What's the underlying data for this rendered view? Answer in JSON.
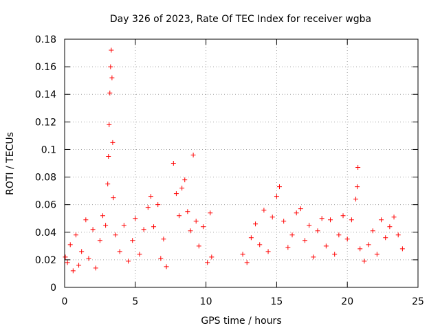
{
  "chart_data": {
    "type": "scatter",
    "title": "Day 326 of 2023, Rate Of TEC Index for receiver wgba",
    "xlabel": "GPS time / hours",
    "ylabel": "ROTI / TECUs",
    "xlim": [
      0,
      25
    ],
    "ylim": [
      0,
      0.18
    ],
    "xticks": [
      0,
      5,
      10,
      15,
      20,
      25
    ],
    "xtick_labels": [
      "0",
      "5",
      "10",
      "15",
      "20",
      "25"
    ],
    "yticks": [
      0,
      0.02,
      0.04,
      0.06,
      0.08,
      0.1,
      0.12,
      0.14,
      0.16,
      0.18
    ],
    "ytick_labels": [
      "0",
      "0.02",
      "0.04",
      "0.06",
      "0.08",
      "0.1",
      "0.12",
      "0.14",
      "0.16",
      "0.18"
    ],
    "grid": true,
    "marker": "+",
    "color": "#ff0000",
    "series": [
      {
        "values": [
          [
            0.05,
            0.022
          ],
          [
            0.2,
            0.018
          ],
          [
            0.4,
            0.031
          ],
          [
            0.6,
            0.012
          ],
          [
            0.8,
            0.038
          ],
          [
            1.0,
            0.016
          ],
          [
            1.2,
            0.026
          ],
          [
            1.5,
            0.049
          ],
          [
            1.7,
            0.021
          ],
          [
            2.0,
            0.042
          ],
          [
            2.2,
            0.014
          ],
          [
            2.5,
            0.034
          ],
          [
            2.7,
            0.052
          ],
          [
            2.9,
            0.045
          ],
          [
            3.05,
            0.075
          ],
          [
            3.1,
            0.095
          ],
          [
            3.15,
            0.118
          ],
          [
            3.2,
            0.141
          ],
          [
            3.25,
            0.16
          ],
          [
            3.3,
            0.172
          ],
          [
            3.35,
            0.152
          ],
          [
            3.4,
            0.105
          ],
          [
            3.45,
            0.065
          ],
          [
            3.6,
            0.038
          ],
          [
            3.9,
            0.026
          ],
          [
            4.2,
            0.045
          ],
          [
            4.5,
            0.019
          ],
          [
            4.8,
            0.034
          ],
          [
            5.0,
            0.05
          ],
          [
            5.3,
            0.024
          ],
          [
            5.6,
            0.042
          ],
          [
            5.9,
            0.058
          ],
          [
            6.1,
            0.066
          ],
          [
            6.3,
            0.044
          ],
          [
            6.6,
            0.06
          ],
          [
            6.8,
            0.021
          ],
          [
            7.0,
            0.035
          ],
          [
            7.2,
            0.015
          ],
          [
            7.7,
            0.09
          ],
          [
            7.9,
            0.068
          ],
          [
            8.1,
            0.052
          ],
          [
            8.3,
            0.072
          ],
          [
            8.5,
            0.078
          ],
          [
            8.7,
            0.055
          ],
          [
            8.9,
            0.041
          ],
          [
            9.1,
            0.096
          ],
          [
            9.3,
            0.048
          ],
          [
            9.5,
            0.03
          ],
          [
            9.8,
            0.044
          ],
          [
            10.1,
            0.018
          ],
          [
            10.3,
            0.054
          ],
          [
            10.4,
            0.022
          ],
          [
            12.6,
            0.024
          ],
          [
            12.9,
            0.018
          ],
          [
            13.2,
            0.036
          ],
          [
            13.5,
            0.046
          ],
          [
            13.8,
            0.031
          ],
          [
            14.1,
            0.056
          ],
          [
            14.4,
            0.026
          ],
          [
            14.7,
            0.051
          ],
          [
            15.0,
            0.066
          ],
          [
            15.2,
            0.073
          ],
          [
            15.5,
            0.048
          ],
          [
            15.8,
            0.029
          ],
          [
            16.1,
            0.038
          ],
          [
            16.4,
            0.054
          ],
          [
            16.7,
            0.057
          ],
          [
            17.0,
            0.034
          ],
          [
            17.3,
            0.045
          ],
          [
            17.6,
            0.022
          ],
          [
            17.9,
            0.041
          ],
          [
            18.2,
            0.05
          ],
          [
            18.5,
            0.03
          ],
          [
            18.8,
            0.049
          ],
          [
            19.1,
            0.024
          ],
          [
            19.4,
            0.038
          ],
          [
            19.7,
            0.052
          ],
          [
            20.0,
            0.035
          ],
          [
            20.3,
            0.049
          ],
          [
            20.6,
            0.064
          ],
          [
            20.7,
            0.073
          ],
          [
            20.75,
            0.087
          ],
          [
            20.9,
            0.028
          ],
          [
            21.2,
            0.019
          ],
          [
            21.5,
            0.031
          ],
          [
            21.8,
            0.041
          ],
          [
            22.1,
            0.024
          ],
          [
            22.4,
            0.049
          ],
          [
            22.7,
            0.036
          ],
          [
            23.0,
            0.044
          ],
          [
            23.3,
            0.051
          ],
          [
            23.6,
            0.038
          ],
          [
            23.9,
            0.028
          ]
        ]
      }
    ]
  }
}
